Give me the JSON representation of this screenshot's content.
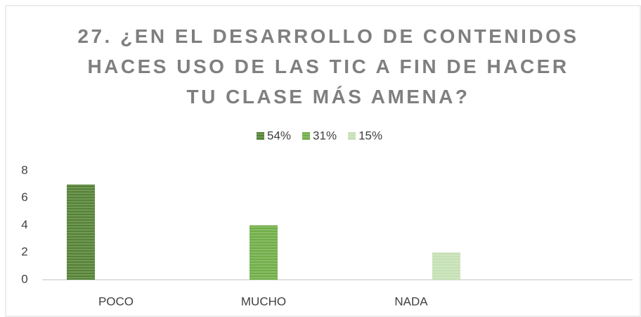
{
  "chart_data": {
    "type": "bar",
    "title": "27. ¿EN EL DESARROLLO DE CONTENIDOS HACES USO DE LAS TIC A FIN DE HACER TU CLASE MÁS AMENA?",
    "categories": [
      "POCO",
      "MUCHO",
      "NADA",
      null
    ],
    "series": [
      {
        "name": "54%",
        "color": "#548235",
        "values": [
          7,
          0,
          0,
          null
        ]
      },
      {
        "name": "31%",
        "color": "#70ad47",
        "values": [
          0,
          4,
          0,
          null
        ]
      },
      {
        "name": "15%",
        "color": "#c5e0b4",
        "values": [
          0,
          0,
          2,
          null
        ]
      }
    ],
    "ylim": [
      0,
      8
    ],
    "yticks": [
      0,
      2,
      4,
      6,
      8
    ],
    "grid": false,
    "legend": "top"
  }
}
